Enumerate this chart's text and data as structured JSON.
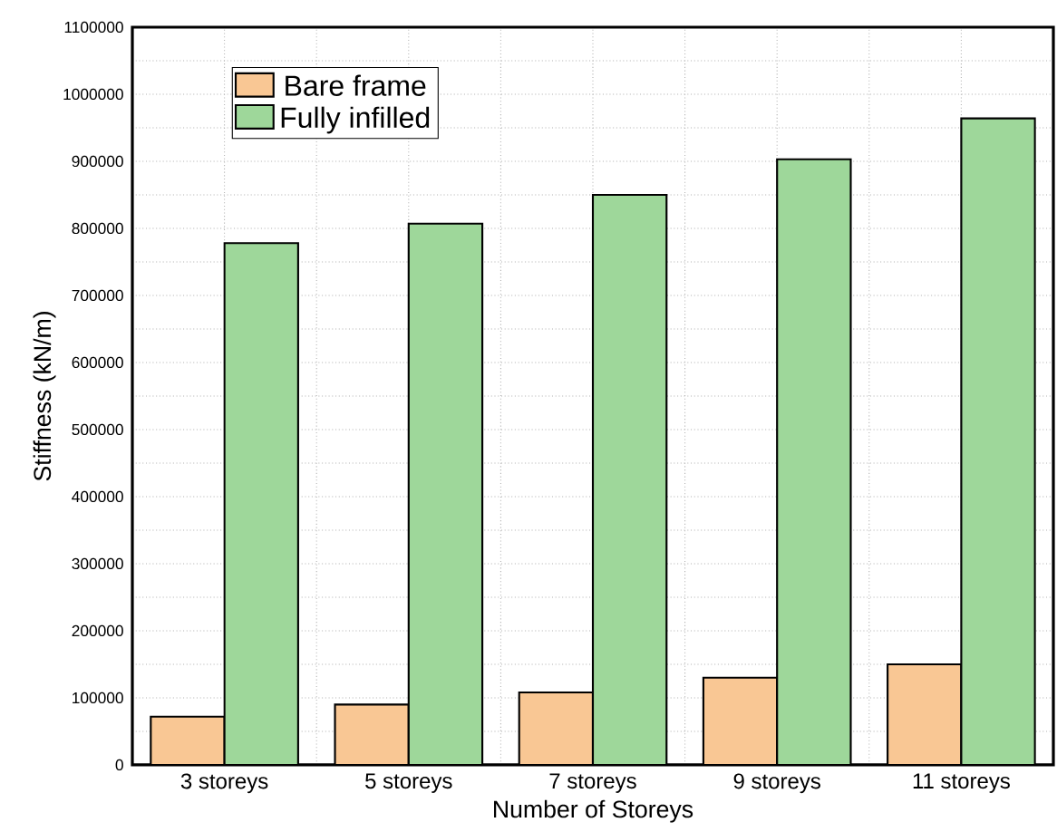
{
  "chart_data": {
    "type": "bar",
    "xlabel": "Number of Storeys",
    "ylabel": "Stiffness (kN/m)",
    "categories": [
      "3 storeys",
      "5 storeys",
      "7 storeys",
      "9 storeys",
      "11 storeys"
    ],
    "series": [
      {
        "name": "Bare frame",
        "color": "#f9c794",
        "values": [
          72000,
          90000,
          108000,
          130000,
          150000
        ]
      },
      {
        "name": "Fully infilled",
        "color": "#9ed79a",
        "values": [
          778000,
          807000,
          850000,
          903000,
          964000
        ]
      }
    ],
    "ylim": [
      0,
      1100000
    ],
    "yticks": [
      0,
      100000,
      200000,
      300000,
      400000,
      500000,
      600000,
      700000,
      800000,
      900000,
      1000000,
      1100000
    ],
    "grid": true,
    "legend": "top left"
  }
}
